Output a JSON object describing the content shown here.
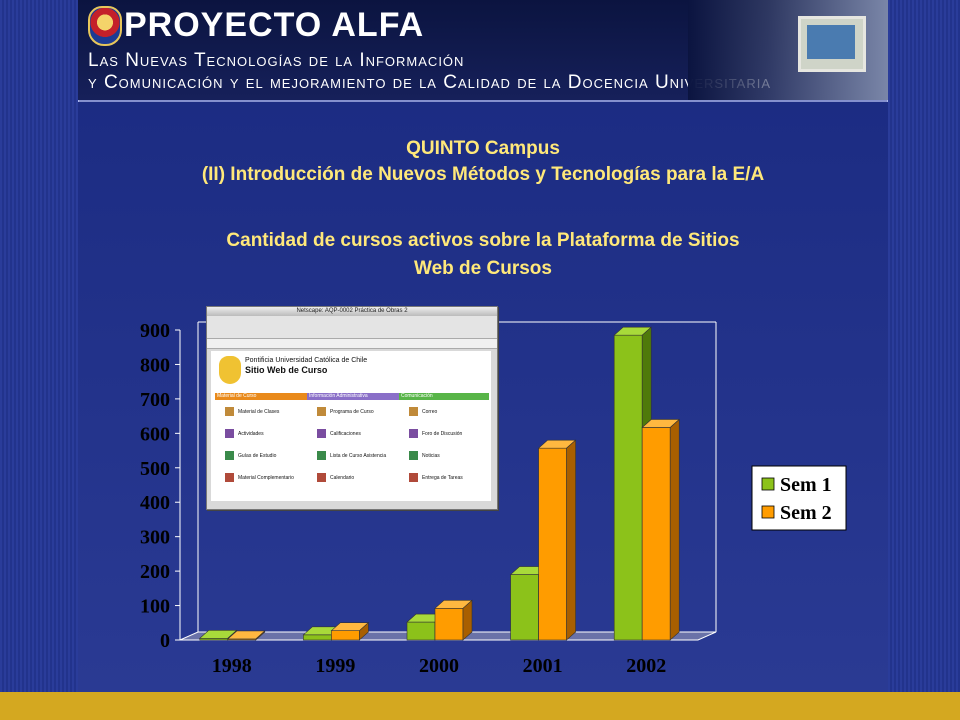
{
  "header": {
    "brand": "PROYECTO ALFA",
    "subtitle_line1": "Las Nuevas Tecnologías de la Información",
    "subtitle_line2": "y Comunicación y el mejoramiento de la Calidad de la Docencia Universitaria"
  },
  "slide": {
    "title_line1": "QUINTO Campus",
    "title_line2": "(II) Introducción de Nuevos Métodos y Tecnologías para la E/A",
    "title_line3": "Cantidad de cursos activos sobre la Plataforma de Sitios",
    "title_line4": "Web de Cursos"
  },
  "inset_screenshot": {
    "window_title": "Netscape: AQP-0002 Práctica de Obras 2",
    "page_heading_small": "Pontificia Universidad Católica de Chile",
    "page_heading": "Sitio Web de Curso",
    "sections": [
      "Material de Curso",
      "Información Administrativa",
      "Comunicación"
    ],
    "items": [
      "Material de Clases",
      "Actividades",
      "Guías de Estudio",
      "Material Complementario",
      "Programa de Curso",
      "Calificaciones",
      "Lista de Curso Asistencia",
      "Calendario",
      "Correo",
      "Foro de Discusión",
      "Noticias",
      "Entrega de Tareas"
    ]
  },
  "colors": {
    "sem1": "#8cc21a",
    "sem2": "#ff9c00",
    "title_yellow": "#ffe87a",
    "background": "#1f2f86"
  },
  "chart_data": {
    "type": "bar",
    "categories": [
      "1998",
      "1999",
      "2000",
      "2001",
      "2002"
    ],
    "series": [
      {
        "name": "Sem 1",
        "values": [
          5,
          15,
          52,
          190,
          885
        ]
      },
      {
        "name": "Sem 2",
        "values": [
          3,
          27,
          92,
          557,
          617
        ]
      }
    ],
    "yticks": [
      "0",
      "100",
      "200",
      "300",
      "400",
      "500",
      "600",
      "700",
      "800",
      "900"
    ],
    "ylim": [
      0,
      900
    ],
    "legend": "right",
    "style": "3d",
    "grid": false
  }
}
